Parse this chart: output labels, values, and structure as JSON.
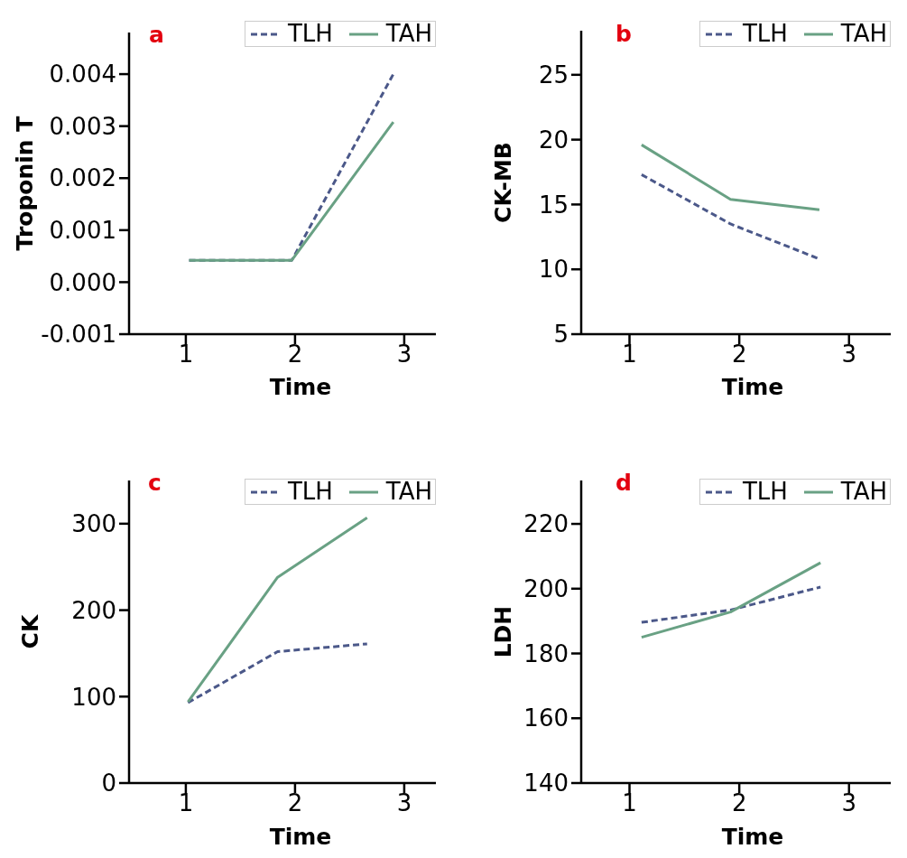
{
  "chart_data": [
    {
      "type": "line",
      "title": "a",
      "xlabel": "Time",
      "ylabel": "Troponin T",
      "x": [
        1.03,
        1.97,
        2.9
      ],
      "xlim": [
        0.48,
        3.29
      ],
      "xticks": [
        1,
        2,
        3
      ],
      "ylim": [
        -0.001,
        0.0048
      ],
      "yticks": [
        -0.001,
        {
          "value": 0,
          "label": "0.000"
        },
        0.001,
        0.002,
        0.003,
        0.004
      ],
      "legend": "top right",
      "series": [
        {
          "name": "TLH",
          "color": "#4b5889",
          "line_style": "dashed",
          "values": [
            0.00042,
            0.00042,
            0.004
          ]
        },
        {
          "name": "TAH",
          "color": "#69a184",
          "line_style": "solid",
          "values": [
            0.00042,
            0.00042,
            0.00308
          ]
        }
      ]
    },
    {
      "type": "line",
      "title": "b",
      "xlabel": "Time",
      "ylabel": "CK-MB",
      "x": [
        1.11,
        1.92,
        2.73
      ],
      "xlim": [
        0.56,
        3.38
      ],
      "xticks": [
        1,
        2,
        3
      ],
      "ylim": [
        5,
        28.4
      ],
      "yticks": [
        5,
        10,
        15,
        20,
        25
      ],
      "legend": "top right",
      "series": [
        {
          "name": "TLH",
          "color": "#4b5889",
          "line_style": "dashed",
          "values": [
            17.3,
            13.5,
            10.8
          ]
        },
        {
          "name": "TAH",
          "color": "#69a184",
          "line_style": "solid",
          "values": [
            19.6,
            15.4,
            14.6
          ]
        }
      ]
    },
    {
      "type": "line",
      "title": "c",
      "xlabel": "Time",
      "ylabel": "CK",
      "x": [
        1.02,
        1.84,
        2.66
      ],
      "xlim": [
        0.48,
        3.29
      ],
      "xticks": [
        1,
        2,
        3
      ],
      "ylim": [
        0,
        350
      ],
      "yticks": [
        0,
        100,
        200,
        300
      ],
      "legend": "top right",
      "series": [
        {
          "name": "TLH",
          "color": "#4b5889",
          "line_style": "dashed",
          "values": [
            93,
            152,
            161
          ]
        },
        {
          "name": "TAH",
          "color": "#69a184",
          "line_style": "solid",
          "values": [
            94,
            238,
            307
          ]
        }
      ]
    },
    {
      "type": "line",
      "title": "d",
      "xlabel": "Time",
      "ylabel": "LDH",
      "x": [
        1.11,
        1.92,
        2.74
      ],
      "xlim": [
        0.56,
        3.38
      ],
      "xticks": [
        1,
        2,
        3
      ],
      "ylim": [
        140,
        233.4
      ],
      "yticks": [
        140,
        160,
        180,
        200,
        220
      ],
      "legend": "top right",
      "series": [
        {
          "name": "TLH",
          "color": "#4b5889",
          "line_style": "dashed",
          "values": [
            189.6,
            193.4,
            200.5
          ]
        },
        {
          "name": "TAH",
          "color": "#69a184",
          "line_style": "solid",
          "values": [
            185,
            192.8,
            208
          ]
        }
      ]
    }
  ]
}
